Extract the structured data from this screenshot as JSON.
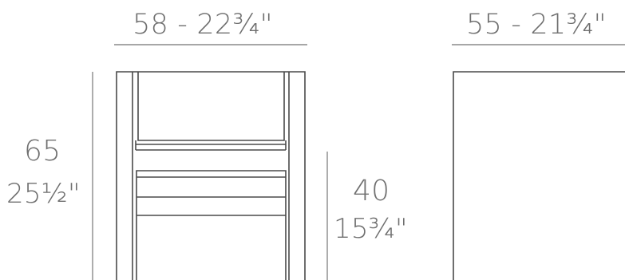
{
  "dimensions": {
    "width_front": "58 - 22¾\"",
    "width_side": "55 - 21¾\"",
    "height_cm": "65",
    "height_in": "25½\"",
    "seat_height_cm": "40",
    "seat_height_in": "15¾\""
  },
  "colors": {
    "line": "#4a4a4a",
    "dimension_line": "#8a8a8a",
    "text": "#6f6f6f",
    "background": "#ffffff"
  }
}
